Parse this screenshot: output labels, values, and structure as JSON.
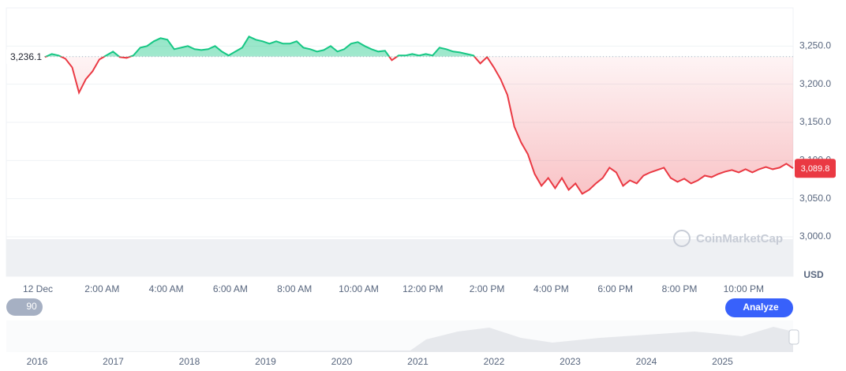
{
  "chart_data": {
    "type": "line",
    "values": [
      3235.5,
      3239.6,
      3237.6,
      3233.4,
      3222.0,
      3188.9,
      3206.5,
      3216.9,
      3232.4,
      3237.6,
      3242.8,
      3235.5,
      3234.5,
      3237.6,
      3247.9,
      3250.0,
      3256.2,
      3260.4,
      3258.3,
      3245.9,
      3247.9,
      3250.0,
      3245.9,
      3244.8,
      3245.9,
      3250.0,
      3242.8,
      3237.6,
      3242.8,
      3247.9,
      3262.4,
      3258.3,
      3256.2,
      3253.1,
      3256.2,
      3253.1,
      3253.1,
      3256.2,
      3247.9,
      3245.9,
      3242.8,
      3244.8,
      3250.0,
      3242.8,
      3245.9,
      3253.1,
      3255.2,
      3250.0,
      3245.9,
      3242.8,
      3243.8,
      3231.4,
      3237.6,
      3237.6,
      3239.6,
      3237.6,
      3239.6,
      3237.6,
      3247.9,
      3245.9,
      3242.8,
      3241.7,
      3239.6,
      3237.6,
      3227.2,
      3235.5,
      3222.0,
      3206.5,
      3185.8,
      3144.4,
      3123.7,
      3108.2,
      3082.3,
      3066.8,
      3077.1,
      3063.7,
      3077.1,
      3061.6,
      3069.9,
      3056.4,
      3061.6,
      3069.9,
      3077.1,
      3090.6,
      3084.4,
      3066.8,
      3074.0,
      3069.9,
      3080.2,
      3084.4,
      3087.5,
      3090.6,
      3077.1,
      3072.0,
      3076.1,
      3069.9,
      3074.0,
      3080.2,
      3078.2,
      3082.3,
      3085.4,
      3087.5,
      3084.4,
      3088.5,
      3084.4,
      3088.5,
      3091.6,
      3088.5,
      3090.6,
      3095.8,
      3089.8
    ],
    "up_color": "#16c784",
    "down_color": "#ea3943",
    "baseline": {
      "value": 3236.1,
      "label": "3,236.1"
    },
    "last_price": {
      "value": 3089.8,
      "label": "3,089.8"
    },
    "ylim": [
      3000,
      3300
    ],
    "yticks": [
      {
        "value": 3000,
        "label": "3,000.0"
      },
      {
        "value": 3050,
        "label": "3,050.0"
      },
      {
        "value": 3100,
        "label": "3,100.0"
      },
      {
        "value": 3150,
        "label": "3,150.0"
      },
      {
        "value": 3200,
        "label": "3,200.0"
      },
      {
        "value": 3250,
        "label": "3,250.0"
      }
    ],
    "grid": true,
    "y_unit": "USD",
    "x_tick_labels": [
      "12 Dec",
      "2:00 AM",
      "4:00 AM",
      "6:00 AM",
      "8:00 AM",
      "10:00 AM",
      "12:00 PM",
      "2:00 PM",
      "4:00 PM",
      "6:00 PM",
      "8:00 PM",
      "10:00 PM"
    ],
    "navigator_labels": [
      "2016",
      "2017",
      "2018",
      "2019",
      "2020",
      "2021",
      "2022",
      "2023",
      "2024",
      "2025"
    ],
    "range_button": "90",
    "analyze_button": "Analyze",
    "watermark": "CoinMarketCap"
  }
}
